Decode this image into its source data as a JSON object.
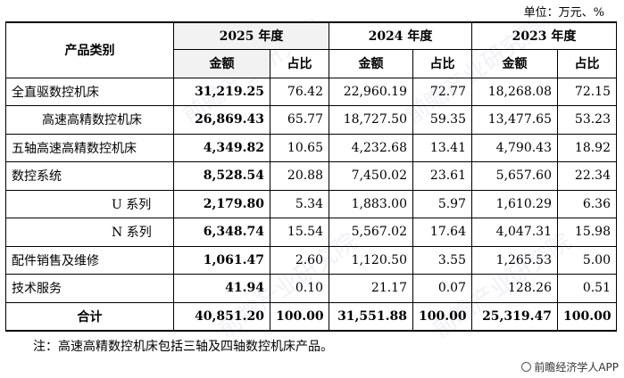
{
  "unit": "单位：万元、%",
  "headers": {
    "category": "产品类别",
    "years": [
      "2025 年度",
      "2024 年度",
      "2023 年度"
    ],
    "amount": "金额",
    "ratio": "占比"
  },
  "rows": [
    {
      "category": "全直驱数控机床",
      "indent": 0,
      "v": [
        "31,219.25",
        "76.42",
        "22,960.19",
        "72.77",
        "18,268.08",
        "72.15"
      ]
    },
    {
      "category": "高速高精数控机床",
      "indent": 1,
      "v": [
        "26,869.43",
        "65.77",
        "18,727.50",
        "59.35",
        "13,477.65",
        "53.23"
      ]
    },
    {
      "category": "五轴高速高精数控机床",
      "indent": 0,
      "v": [
        "4,349.82",
        "10.65",
        "4,232.68",
        "13.41",
        "4,790.43",
        "18.92"
      ]
    },
    {
      "category": "数控系统",
      "indent": 0,
      "v": [
        "8,528.54",
        "20.88",
        "7,450.02",
        "23.61",
        "5,657.60",
        "22.34"
      ]
    },
    {
      "category": "U 系列",
      "indent": 2,
      "v": [
        "2,179.80",
        "5.34",
        "1,883.00",
        "5.97",
        "1,610.29",
        "6.36"
      ]
    },
    {
      "category": "N 系列",
      "indent": 2,
      "v": [
        "6,348.74",
        "15.54",
        "5,567.02",
        "17.64",
        "4,047.31",
        "15.98"
      ]
    },
    {
      "category": "配件销售及维修",
      "indent": 0,
      "v": [
        "1,061.47",
        "2.60",
        "1,120.50",
        "3.55",
        "1,265.53",
        "5.00"
      ]
    },
    {
      "category": "技术服务",
      "indent": 0,
      "v": [
        "41.94",
        "0.10",
        "21.17",
        "0.07",
        "128.26",
        "0.51"
      ]
    }
  ],
  "total": {
    "category": "合计",
    "v": [
      "40,851.20",
      "100.00",
      "31,551.88",
      "100.00",
      "25,319.47",
      "100.00"
    ]
  },
  "note": "注：高速高精数控机床包括三轴及四轴数控机床产品。",
  "brand": "前瞻经济学人APP",
  "watermark_text": "前瞻产业研究院"
}
